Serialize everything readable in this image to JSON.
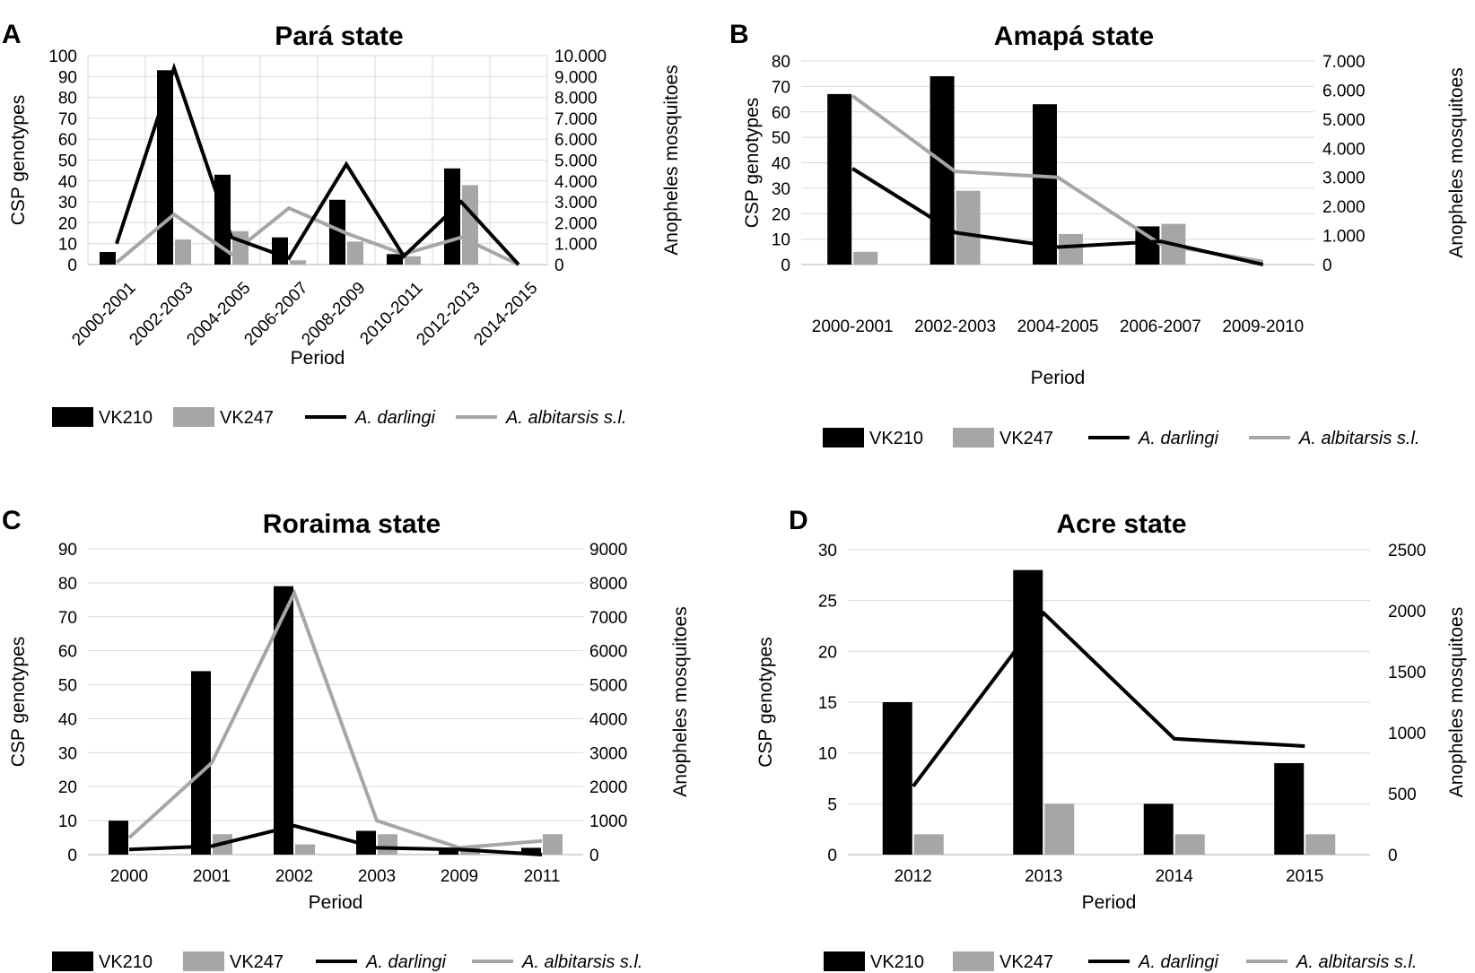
{
  "legend": {
    "vk210": "VK210",
    "vk247": "VK247",
    "darlingi": "A. darlingi",
    "albitarsis": "A. albitarsis s.l."
  },
  "colors": {
    "vk210": "#000000",
    "vk247": "#a6a6a6",
    "darlingi": "#000000",
    "albitarsis": "#a6a6a6",
    "grid": "#d9d9d9"
  },
  "chart_data": [
    {
      "panel": "A",
      "type": "bar",
      "title": "Pará state",
      "xlabel": "Period",
      "ylabel": "CSP genotypes",
      "y2label": "Anopheles  mosquitoes",
      "categories": [
        "2000-2001",
        "2002-2003",
        "2004-2005",
        "2006-2007",
        "2008-2009",
        "2010-2011",
        "2012-2013",
        "2014-2015"
      ],
      "ylim": [
        0,
        100
      ],
      "yticks": [
        "0",
        "10",
        "20",
        "30",
        "40",
        "50",
        "60",
        "70",
        "80",
        "90",
        "100"
      ],
      "y2lim": [
        0,
        10000
      ],
      "y2ticks": [
        "0",
        "1.000",
        "2.000",
        "3.000",
        "4.000",
        "5.000",
        "6.000",
        "7.000",
        "8.000",
        "9.000",
        "10.000"
      ],
      "rotated_xticks": true,
      "grid": true,
      "series": [
        {
          "name": "VK210",
          "type": "bar",
          "axis": "left",
          "values": [
            6,
            93,
            43,
            13,
            31,
            5,
            46,
            0
          ]
        },
        {
          "name": "VK247",
          "type": "bar",
          "axis": "left",
          "values": [
            0,
            12,
            16,
            2,
            11,
            4,
            38,
            0
          ]
        },
        {
          "name": "A. darlingi",
          "type": "line",
          "axis": "right",
          "values": [
            1000,
            9400,
            1300,
            300,
            4800,
            400,
            3000,
            0
          ]
        },
        {
          "name": "A. albitarsis s.l.",
          "type": "line",
          "axis": "right",
          "values": [
            100,
            2400,
            500,
            2700,
            1500,
            500,
            1300,
            0
          ]
        }
      ]
    },
    {
      "panel": "B",
      "type": "bar",
      "title": "Amapá state",
      "xlabel": "Period",
      "ylabel": "CSP genotypes",
      "y2label": "Anopheles  mosquitoes",
      "categories": [
        "2000-2001",
        "2002-2003",
        "2004-2005",
        "2006-2007",
        "2009-2010"
      ],
      "ylim": [
        0,
        80
      ],
      "yticks": [
        "0",
        "10",
        "20",
        "30",
        "40",
        "50",
        "60",
        "70",
        "80"
      ],
      "y2lim": [
        0,
        7000
      ],
      "y2ticks": [
        "0",
        "1.000",
        "2.000",
        "3.000",
        "4.000",
        "5.000",
        "6.000",
        "7.000"
      ],
      "rotated_xticks": false,
      "grid": true,
      "series": [
        {
          "name": "VK210",
          "type": "bar",
          "axis": "left",
          "values": [
            67,
            74,
            63,
            15,
            0
          ]
        },
        {
          "name": "VK247",
          "type": "bar",
          "axis": "left",
          "values": [
            5,
            29,
            12,
            16,
            0
          ]
        },
        {
          "name": "A. darlingi",
          "type": "line",
          "axis": "right",
          "values": [
            3300,
            1100,
            600,
            800,
            0
          ]
        },
        {
          "name": "A. albitarsis s.l.",
          "type": "line",
          "axis": "right",
          "values": [
            5800,
            3200,
            3000,
            700,
            100
          ]
        }
      ]
    },
    {
      "panel": "C",
      "type": "bar",
      "title": "Roraima state",
      "xlabel": "Period",
      "ylabel": "CSP genotypes",
      "y2label": "Anopheles  mosquitoes",
      "categories": [
        "2000",
        "2001",
        "2002",
        "2003",
        "2009",
        "2011"
      ],
      "ylim": [
        0,
        90
      ],
      "yticks": [
        "0",
        "10",
        "20",
        "30",
        "40",
        "50",
        "60",
        "70",
        "80",
        "90"
      ],
      "y2lim": [
        0,
        9000
      ],
      "y2ticks": [
        "0",
        "1000",
        "2000",
        "3000",
        "4000",
        "5000",
        "6000",
        "7000",
        "8000",
        "9000"
      ],
      "rotated_xticks": false,
      "grid": true,
      "series": [
        {
          "name": "VK210",
          "type": "bar",
          "axis": "left",
          "values": [
            10,
            54,
            79,
            7,
            2,
            2
          ]
        },
        {
          "name": "VK247",
          "type": "bar",
          "axis": "left",
          "values": [
            0,
            6,
            3,
            6,
            2,
            6
          ]
        },
        {
          "name": "A. darlingi",
          "type": "line",
          "axis": "right",
          "values": [
            150,
            250,
            850,
            200,
            150,
            0
          ]
        },
        {
          "name": "A. albitarsis s.l.",
          "type": "line",
          "axis": "right",
          "values": [
            500,
            2700,
            7700,
            1000,
            200,
            400
          ]
        }
      ]
    },
    {
      "panel": "D",
      "type": "bar",
      "title": "Acre state",
      "xlabel": "Period",
      "ylabel": "CSP genotypes",
      "y2label": "Anopheles  mosquitoes",
      "categories": [
        "2012",
        "2013",
        "2014",
        "2015"
      ],
      "ylim": [
        0,
        30
      ],
      "yticks": [
        "0",
        "5",
        "10",
        "15",
        "20",
        "25",
        "30"
      ],
      "y2lim": [
        0,
        2500
      ],
      "y2ticks": [
        "0",
        "500",
        "1000",
        "1500",
        "2000",
        "2500"
      ],
      "rotated_xticks": false,
      "grid": true,
      "series": [
        {
          "name": "VK210",
          "type": "bar",
          "axis": "left",
          "values": [
            15,
            28,
            5,
            9
          ]
        },
        {
          "name": "VK247",
          "type": "bar",
          "axis": "left",
          "values": [
            2,
            5,
            2,
            2
          ]
        },
        {
          "name": "A. darlingi",
          "type": "line",
          "axis": "right",
          "values": [
            560,
            1980,
            950,
            890
          ]
        },
        {
          "name": "A. albitarsis s.l.",
          "type": "line",
          "axis": "right",
          "values": [
            0,
            0,
            0,
            0
          ]
        }
      ]
    }
  ]
}
